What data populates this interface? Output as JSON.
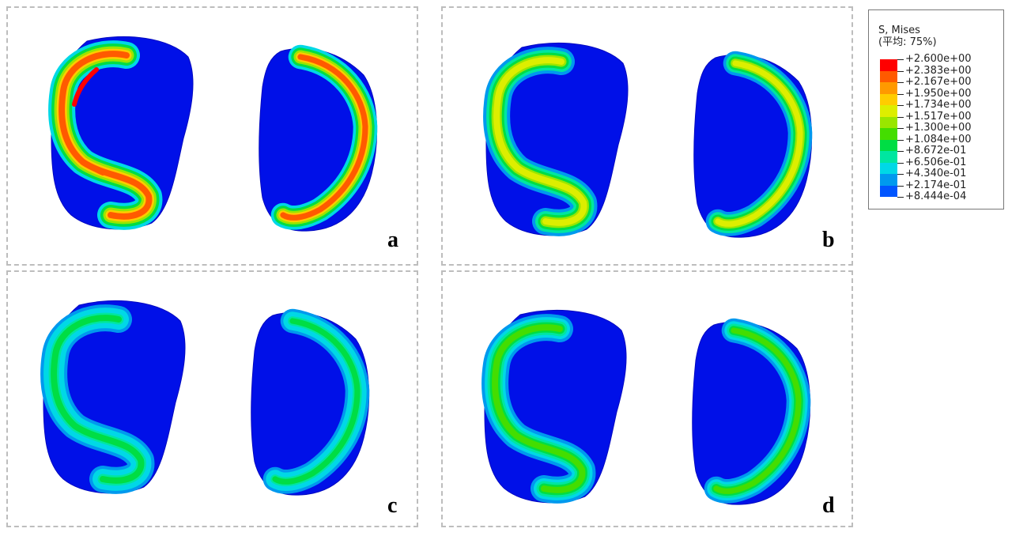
{
  "legend": {
    "title_line1": "S, Mises",
    "title_line2": "(平均: 75%)",
    "levels": [
      "+2.600e+00",
      "+2.383e+00",
      "+2.167e+00",
      "+1.950e+00",
      "+1.734e+00",
      "+1.517e+00",
      "+1.300e+00",
      "+1.084e+00",
      "+8.672e-01",
      "+6.506e-01",
      "+4.340e-01",
      "+2.174e-01",
      "+8.444e-04"
    ],
    "colors": [
      "#ff0000",
      "#ff5a00",
      "#ff9900",
      "#ffcc00",
      "#ddee00",
      "#99e600",
      "#44dd00",
      "#00dd44",
      "#00e6a0",
      "#00d8e6",
      "#0099ee",
      "#0055ff",
      "#0010e8"
    ]
  },
  "panels": [
    {
      "label": "a",
      "intensity": 1.0
    },
    {
      "label": "b",
      "intensity": 0.72
    },
    {
      "label": "c",
      "intensity": 0.42
    },
    {
      "label": "d",
      "intensity": 0.55
    }
  ]
}
